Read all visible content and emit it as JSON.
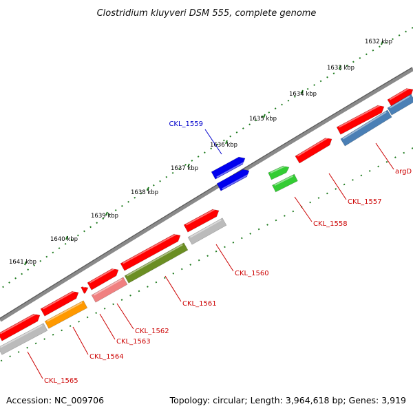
{
  "title": "Clostridium kluyveri DSM 555, complete genome",
  "footer": {
    "accession": "Accession: NC_009706",
    "summary": "Topology: circular; Length: 3,964,618 bp; Genes: 3,919"
  },
  "ticks": [
    "1632 kbp",
    "1633 kbp",
    "1634 kbp",
    "1635 kbp",
    "1636 kbp",
    "1637 kbp",
    "1638 kbp",
    "1639 kbp",
    "1640 kbp",
    "1641 kbp"
  ],
  "colors": {
    "backbone": "#7a7a7a",
    "dots": "#1d7a1d",
    "label_red": "#cc0000",
    "label_blue": "#0000cc"
  },
  "genes": [
    {
      "id": "argD",
      "label": "argD",
      "strand": "-",
      "color": "#ff0000"
    },
    {
      "id": "argD-cds",
      "label": "",
      "strand": "-",
      "color": "#4a7fb5"
    },
    {
      "id": "CKL_1557",
      "label": "CKL_1557",
      "strand": "-",
      "color": "#ff0000"
    },
    {
      "id": "CKL_1557-cds",
      "label": "",
      "strand": "-",
      "color": "#4a7fb5"
    },
    {
      "id": "CKL_1558",
      "label": "CKL_1558",
      "strand": "-",
      "color": "#ff0000"
    },
    {
      "id": "CKL_1558-cds",
      "label": "",
      "strand": "-",
      "color": "#33cc33"
    },
    {
      "id": "CKL_1559",
      "label": "CKL_1559",
      "strand": "+",
      "color": "#0000ee"
    },
    {
      "id": "CKL_1560",
      "label": "CKL_1560",
      "strand": "-",
      "color": "#ff0000"
    },
    {
      "id": "CKL_1560-cds",
      "label": "",
      "strand": "-",
      "color": "#bbbbbb"
    },
    {
      "id": "CKL_1561",
      "label": "CKL_1561",
      "strand": "-",
      "color": "#ff0000"
    },
    {
      "id": "CKL_1561-cds",
      "label": "",
      "strand": "-",
      "color": "#6b8e23"
    },
    {
      "id": "CKL_1562",
      "label": "CKL_1562",
      "strand": "-",
      "color": "#ff0000"
    },
    {
      "id": "CKL_1562-cds",
      "label": "",
      "strand": "-",
      "color": "#f08080"
    },
    {
      "id": "CKL_1563",
      "label": "CKL_1563",
      "strand": "-",
      "color": "#ff0000"
    },
    {
      "id": "CKL_1564",
      "label": "CKL_1564",
      "strand": "-",
      "color": "#ff0000"
    },
    {
      "id": "CKL_1564-cds",
      "label": "",
      "strand": "-",
      "color": "#ff9900"
    },
    {
      "id": "CKL_1565",
      "label": "CKL_1565",
      "strand": "-",
      "color": "#ff0000"
    },
    {
      "id": "CKL_1565-cds",
      "label": "",
      "strand": "-",
      "color": "#bbbbbb"
    }
  ]
}
